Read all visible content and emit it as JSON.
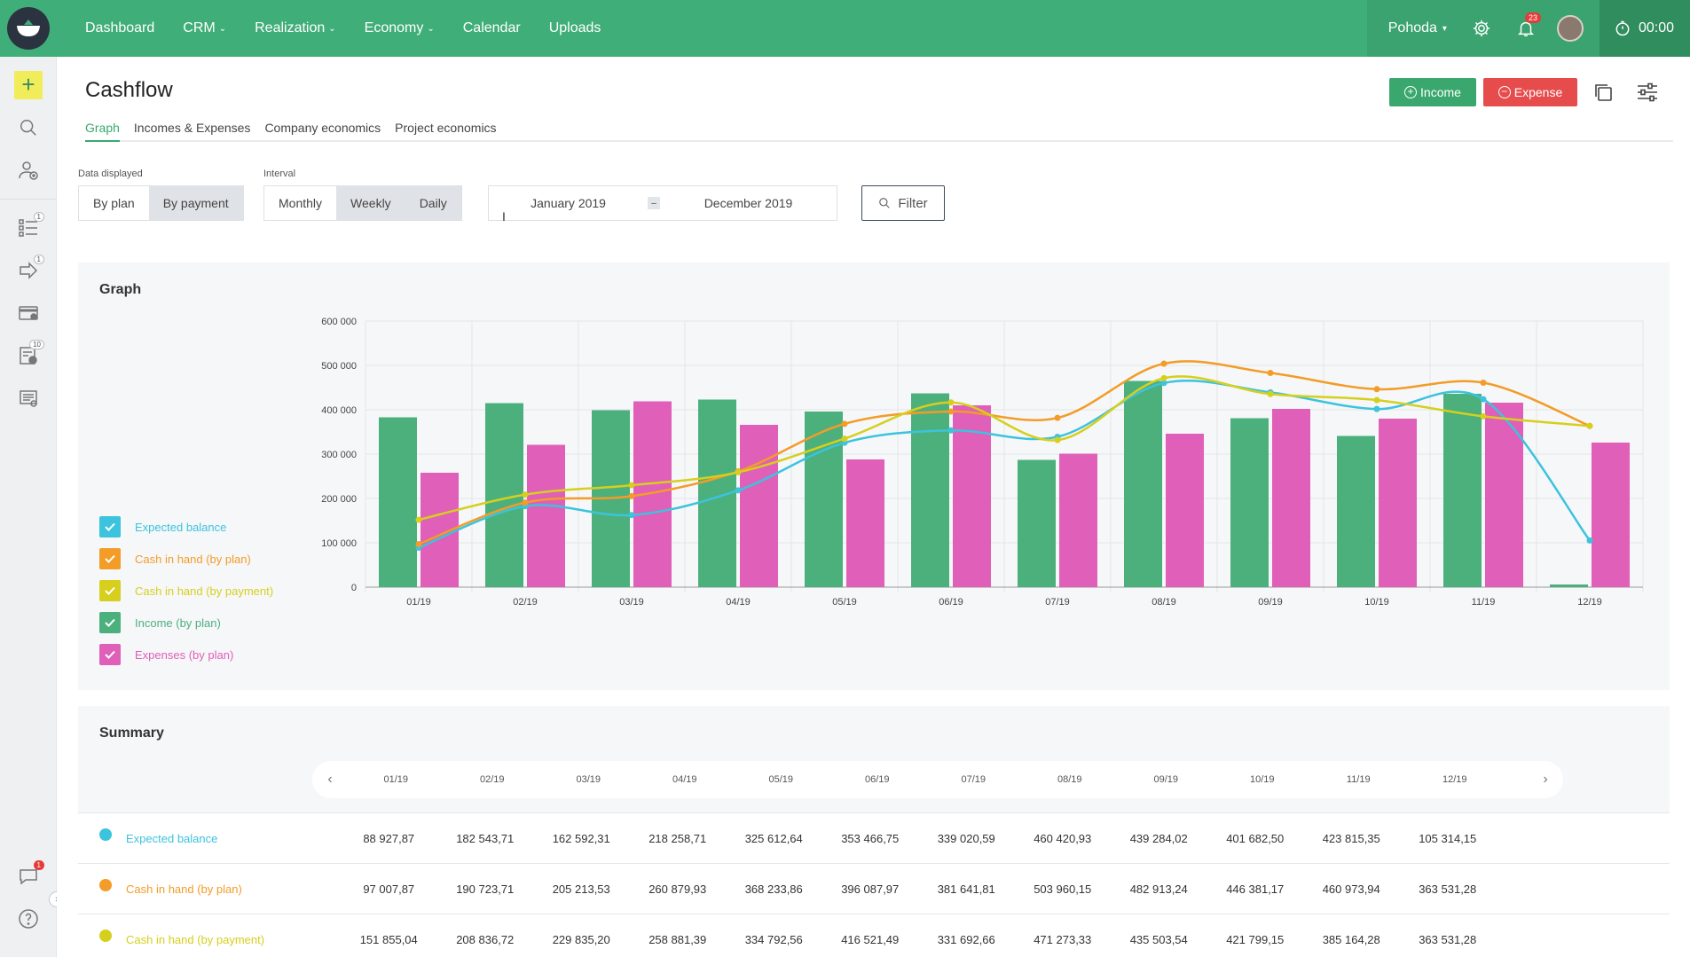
{
  "topbar": {
    "nav": [
      {
        "label": "Dashboard",
        "dropdown": false
      },
      {
        "label": "CRM",
        "dropdown": true
      },
      {
        "label": "Realization",
        "dropdown": true
      },
      {
        "label": "Economy",
        "dropdown": true
      },
      {
        "label": "Calendar",
        "dropdown": false
      },
      {
        "label": "Uploads",
        "dropdown": false
      }
    ],
    "company": "Pohoda",
    "notifications_count": "23",
    "timer": "00:00"
  },
  "sidebar": {
    "badges": {
      "tasks": "1",
      "requests": "1",
      "invoices": "10",
      "chat": "1"
    }
  },
  "page": {
    "title": "Cashflow",
    "income_label": "Income",
    "expense_label": "Expense",
    "tabs": [
      "Graph",
      "Incomes & Expenses",
      "Company economics",
      "Project economics"
    ]
  },
  "controls": {
    "data_displayed_label": "Data displayed",
    "data_displayed_options": [
      "By plan",
      "By payment"
    ],
    "interval_label": "Interval",
    "interval_options": [
      "Monthly",
      "Weekly",
      "Daily"
    ],
    "date_from": "January 2019",
    "date_to": "December 2019",
    "filter_label": "Filter"
  },
  "graph_panel": {
    "title": "Graph",
    "legend": [
      {
        "label": "Expected balance",
        "color": "#3cc3dd"
      },
      {
        "label": "Cash in hand (by plan)",
        "color": "#f39c27"
      },
      {
        "label": "Cash in hand (by payment)",
        "color": "#d6cf1e"
      },
      {
        "label": "Income (by plan)",
        "color": "#4cb07d"
      },
      {
        "label": "Expenses (by plan)",
        "color": "#e05fb8"
      }
    ]
  },
  "chart_data": {
    "type": "bar",
    "categories": [
      "01/19",
      "02/19",
      "03/19",
      "04/19",
      "05/19",
      "06/19",
      "07/19",
      "08/19",
      "09/19",
      "10/19",
      "11/19",
      "12/19"
    ],
    "ylim": [
      0,
      600000
    ],
    "y_ticks": [
      "0",
      "100 000",
      "200 000",
      "300 000",
      "400 000",
      "500 000",
      "600 000"
    ],
    "series": [
      {
        "name": "Income (by plan)",
        "type": "bar",
        "color": "#4cb07d",
        "values": [
          383000,
          415000,
          399000,
          423000,
          396000,
          437000,
          287000,
          465000,
          381000,
          341000,
          436000,
          6000
        ]
      },
      {
        "name": "Expenses (by plan)",
        "type": "bar",
        "color": "#e05fb8",
        "values": [
          258000,
          321000,
          419000,
          366000,
          288000,
          410000,
          301000,
          346000,
          402000,
          380000,
          416000,
          326000
        ]
      },
      {
        "name": "Expected balance",
        "type": "line",
        "color": "#3cc3dd",
        "values": [
          88927.87,
          182543.71,
          162592.31,
          218258.71,
          325612.64,
          353466.75,
          339020.59,
          460420.93,
          439284.02,
          401682.5,
          423815.35,
          105314.15
        ]
      },
      {
        "name": "Cash in hand (by plan)",
        "type": "line",
        "color": "#f39c27",
        "values": [
          97007.87,
          190723.71,
          205213.53,
          260879.93,
          368233.86,
          396087.97,
          381641.81,
          503960.15,
          482913.24,
          446381.17,
          460973.94,
          363531.28
        ]
      },
      {
        "name": "Cash in hand (by payment)",
        "type": "line",
        "color": "#d6cf1e",
        "values": [
          151855.04,
          208836.72,
          229835.2,
          258881.39,
          334792.56,
          416521.49,
          331692.66,
          471273.33,
          435503.54,
          421799.15,
          385164.28,
          363531.28
        ]
      }
    ]
  },
  "summary": {
    "title": "Summary",
    "months": [
      "01/19",
      "02/19",
      "03/19",
      "04/19",
      "05/19",
      "06/19",
      "07/19",
      "08/19",
      "09/19",
      "10/19",
      "11/19",
      "12/19"
    ],
    "rows": [
      {
        "label": "Expected balance",
        "color": "#3cc3dd",
        "values": [
          "88 927,87",
          "182 543,71",
          "162 592,31",
          "218 258,71",
          "325 612,64",
          "353 466,75",
          "339 020,59",
          "460 420,93",
          "439 284,02",
          "401 682,50",
          "423 815,35",
          "105 314,15"
        ]
      },
      {
        "label": "Cash in hand (by plan)",
        "color": "#f39c27",
        "values": [
          "97 007,87",
          "190 723,71",
          "205 213,53",
          "260 879,93",
          "368 233,86",
          "396 087,97",
          "381 641,81",
          "503 960,15",
          "482 913,24",
          "446 381,17",
          "460 973,94",
          "363 531,28"
        ]
      },
      {
        "label": "Cash in hand (by payment)",
        "color": "#d6cf1e",
        "values": [
          "151 855,04",
          "208 836,72",
          "229 835,20",
          "258 881,39",
          "334 792,56",
          "416 521,49",
          "331 692,66",
          "471 273,33",
          "435 503,54",
          "421 799,15",
          "385 164,28",
          "363 531,28"
        ]
      }
    ]
  }
}
